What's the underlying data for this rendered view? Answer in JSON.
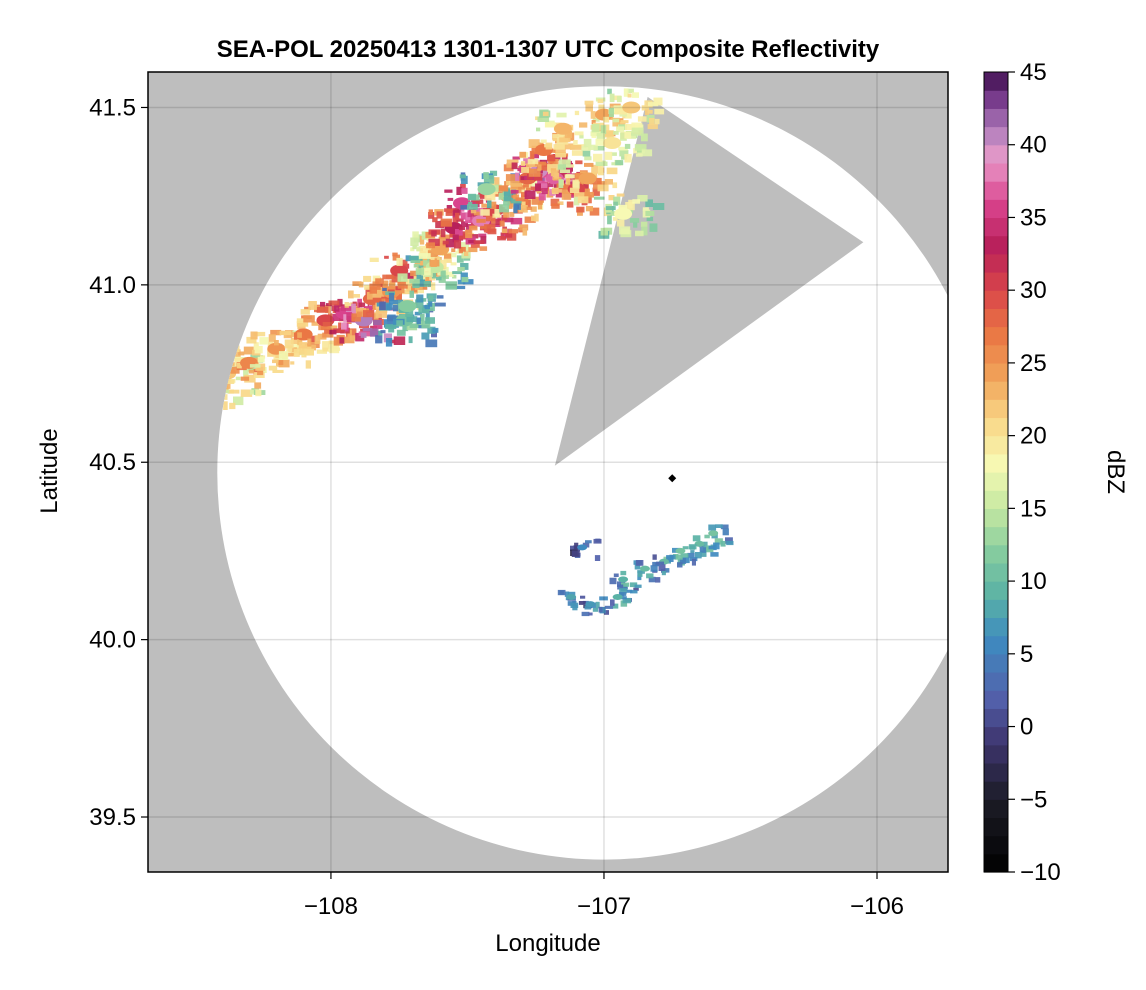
{
  "chart_data": {
    "type": "heatmap",
    "title": "SEA-POL 20250413 1301-1307 UTC Composite Reflectivity",
    "xlabel": "Longitude",
    "ylabel": "Latitude",
    "xlim": [
      -108.67,
      -105.74
    ],
    "ylim": [
      39.345,
      41.6
    ],
    "x_ticks": [
      -108,
      -107,
      -106
    ],
    "x_tick_labels": [
      "−108",
      "−107",
      "−106"
    ],
    "y_ticks": [
      39.5,
      40.0,
      40.5,
      41.0,
      41.5
    ],
    "y_tick_labels": [
      "39.5",
      "40.0",
      "40.5",
      "41.0",
      "41.5"
    ],
    "grid": true,
    "background_color": "#bebebe",
    "radar_coverage": {
      "center_lon": -107.0,
      "center_lat": 40.47,
      "radius_lat_deg": 1.09,
      "blocked_sector": [
        [
          -107.18,
          40.49
        ],
        [
          -106.84,
          41.53
        ],
        [
          -106.05,
          41.12
        ]
      ]
    },
    "radar_site_marker": {
      "lon": -106.75,
      "lat": 40.455,
      "symbol": "diamond"
    },
    "echo_regions": [
      {
        "name": "northwest band",
        "max_dbz": 42,
        "cells": [
          {
            "lon": -108.45,
            "lat": 40.72,
            "dbz": 24
          },
          {
            "lon": -108.38,
            "lat": 40.75,
            "dbz": 22
          },
          {
            "lon": -108.3,
            "lat": 40.78,
            "dbz": 26
          },
          {
            "lon": -108.2,
            "lat": 40.82,
            "dbz": 25
          },
          {
            "lon": -108.1,
            "lat": 40.86,
            "dbz": 27
          },
          {
            "lon": -108.02,
            "lat": 40.9,
            "dbz": 30
          },
          {
            "lon": -107.95,
            "lat": 40.92,
            "dbz": 36
          },
          {
            "lon": -107.88,
            "lat": 40.9,
            "dbz": 41
          },
          {
            "lon": -107.85,
            "lat": 40.96,
            "dbz": 28
          },
          {
            "lon": -107.78,
            "lat": 40.98,
            "dbz": 25
          },
          {
            "lon": -107.75,
            "lat": 41.04,
            "dbz": 30
          },
          {
            "lon": -107.66,
            "lat": 41.06,
            "dbz": 23
          },
          {
            "lon": -107.62,
            "lat": 41.05,
            "dbz": 15
          },
          {
            "lon": -107.6,
            "lat": 41.1,
            "dbz": 24
          },
          {
            "lon": -107.55,
            "lat": 41.16,
            "dbz": 33
          },
          {
            "lon": -107.52,
            "lat": 41.23,
            "dbz": 36
          },
          {
            "lon": -107.45,
            "lat": 41.18,
            "dbz": 38
          },
          {
            "lon": -107.4,
            "lat": 41.21,
            "dbz": 30
          },
          {
            "lon": -107.35,
            "lat": 41.25,
            "dbz": 26
          },
          {
            "lon": -107.43,
            "lat": 41.27,
            "dbz": 13
          },
          {
            "lon": -107.28,
            "lat": 41.3,
            "dbz": 28
          },
          {
            "lon": -107.24,
            "lat": 41.32,
            "dbz": 40
          },
          {
            "lon": -107.18,
            "lat": 41.3,
            "dbz": 37
          },
          {
            "lon": -107.22,
            "lat": 41.38,
            "dbz": 27
          },
          {
            "lon": -107.1,
            "lat": 41.27,
            "dbz": 30
          },
          {
            "lon": -107.06,
            "lat": 41.3,
            "dbz": 24
          },
          {
            "lon": -107.15,
            "lat": 41.44,
            "dbz": 23
          },
          {
            "lon": -107.0,
            "lat": 41.48,
            "dbz": 24
          },
          {
            "lon": -106.9,
            "lat": 41.5,
            "dbz": 22
          },
          {
            "lon": -106.97,
            "lat": 41.4,
            "dbz": 20
          },
          {
            "lon": -106.93,
            "lat": 41.2,
            "dbz": 18
          },
          {
            "lon": -107.73,
            "lat": 40.9,
            "dbz": 11
          },
          {
            "lon": -107.72,
            "lat": 40.94,
            "dbz": 12
          }
        ]
      },
      {
        "name": "southeast band",
        "max_dbz": 12,
        "cells": [
          {
            "lon": -106.6,
            "lat": 40.3,
            "dbz": 11
          },
          {
            "lon": -106.65,
            "lat": 40.27,
            "dbz": 10
          },
          {
            "lon": -106.72,
            "lat": 40.25,
            "dbz": 11
          },
          {
            "lon": -106.78,
            "lat": 40.22,
            "dbz": 10
          },
          {
            "lon": -106.85,
            "lat": 40.2,
            "dbz": 10
          },
          {
            "lon": -106.93,
            "lat": 40.17,
            "dbz": 9
          },
          {
            "lon": -107.08,
            "lat": 40.26,
            "dbz": 6
          },
          {
            "lon": -107.12,
            "lat": 40.12,
            "dbz": 8
          },
          {
            "lon": -107.05,
            "lat": 40.1,
            "dbz": 7
          },
          {
            "lon": -106.95,
            "lat": 40.12,
            "dbz": 9
          }
        ]
      }
    ],
    "colorbar": {
      "label": "dBZ",
      "vmin": -10,
      "vmax": 45,
      "step": 1.25,
      "ticks": [
        -10,
        -5,
        0,
        5,
        10,
        15,
        20,
        25,
        30,
        35,
        40,
        45
      ],
      "tick_labels": [
        "−10",
        "−5",
        "0",
        "5",
        "10",
        "15",
        "20",
        "25",
        "30",
        "35",
        "40",
        "45"
      ],
      "colormap_stops": [
        {
          "v": -10,
          "c": "#000000"
        },
        {
          "v": -5,
          "c": "#1c1c27"
        },
        {
          "v": -1,
          "c": "#3e3570"
        },
        {
          "v": 2,
          "c": "#5361ab"
        },
        {
          "v": 6,
          "c": "#3e8bc0"
        },
        {
          "v": 9,
          "c": "#5ab2a5"
        },
        {
          "v": 12,
          "c": "#86cc9f"
        },
        {
          "v": 15,
          "c": "#c5e8a1"
        },
        {
          "v": 18,
          "c": "#f7f9b4"
        },
        {
          "v": 21,
          "c": "#f9d888"
        },
        {
          "v": 24,
          "c": "#f1a45a"
        },
        {
          "v": 27,
          "c": "#ea7744"
        },
        {
          "v": 30,
          "c": "#d9464a"
        },
        {
          "v": 33,
          "c": "#b8205a"
        },
        {
          "v": 36,
          "c": "#d9438d"
        },
        {
          "v": 39,
          "c": "#e99bc9"
        },
        {
          "v": 41,
          "c": "#b27fbd"
        },
        {
          "v": 43,
          "c": "#7c3f90"
        },
        {
          "v": 45,
          "c": "#3e0e4d"
        }
      ]
    }
  }
}
